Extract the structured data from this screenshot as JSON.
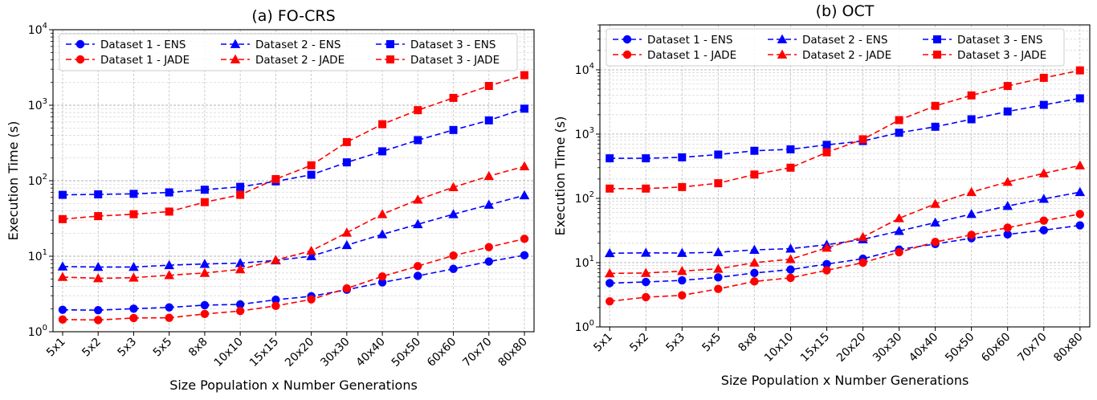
{
  "chart_data": [
    {
      "type": "line",
      "title": "(a) FO-CRS",
      "xlabel": "Size Population x Number Generations",
      "ylabel": "Execution Time (s)",
      "yscale": "log",
      "ylim": [
        1,
        10000
      ],
      "grid": true,
      "legend_position": "top",
      "categories": [
        "5x1",
        "5x2",
        "5x3",
        "5x5",
        "8x8",
        "10x10",
        "15x15",
        "20x20",
        "30x30",
        "40x40",
        "50x50",
        "60x60",
        "70x70",
        "80x80"
      ],
      "series": [
        {
          "name": "Dataset 1 - ENS",
          "color": "#0000ff",
          "marker": "circle",
          "values": [
            1.95,
            1.93,
            2.02,
            2.1,
            2.25,
            2.3,
            2.65,
            2.95,
            3.6,
            4.5,
            5.5,
            6.8,
            8.5,
            10.3
          ]
        },
        {
          "name": "Dataset 1 - JADE",
          "color": "#ff0000",
          "marker": "circle",
          "values": [
            1.45,
            1.43,
            1.52,
            1.53,
            1.72,
            1.88,
            2.2,
            2.68,
            3.75,
            5.4,
            7.4,
            10.2,
            13.2,
            17
          ]
        },
        {
          "name": "Dataset 2 - ENS",
          "color": "#0000ff",
          "marker": "triangle",
          "values": [
            7.3,
            7.2,
            7.2,
            7.6,
            7.9,
            8.1,
            8.8,
            10,
            14,
            19.5,
            26.5,
            36,
            48,
            64
          ]
        },
        {
          "name": "Dataset 2 - JADE",
          "color": "#ff0000",
          "marker": "triangle",
          "values": [
            5.3,
            5.1,
            5.2,
            5.6,
            6,
            6.7,
            8.9,
            11.8,
            20.5,
            36,
            56,
            82,
            115,
            155
          ]
        },
        {
          "name": "Dataset 3 - ENS",
          "color": "#0000ff",
          "marker": "square",
          "values": [
            65,
            66,
            67,
            70,
            76,
            83,
            98,
            120,
            175,
            245,
            345,
            470,
            630,
            900
          ]
        },
        {
          "name": "Dataset 3 - JADE",
          "color": "#ff0000",
          "marker": "square",
          "values": [
            31,
            34,
            36,
            39,
            52,
            65,
            105,
            160,
            325,
            560,
            860,
            1250,
            1800,
            2500
          ]
        }
      ]
    },
    {
      "type": "line",
      "title": "(b) OCT",
      "xlabel": "Size Population x Number Generations",
      "ylabel": "Execution Time (s)",
      "yscale": "log",
      "ylim": [
        1,
        50000
      ],
      "grid": true,
      "legend_position": "top",
      "categories": [
        "5x1",
        "5x2",
        "5x3",
        "5x5",
        "8x8",
        "10x10",
        "15x15",
        "20x20",
        "30x30",
        "40x40",
        "50x50",
        "60x60",
        "70x70",
        "80x80"
      ],
      "series": [
        {
          "name": "Dataset 1 - ENS",
          "color": "#0000ff",
          "marker": "circle",
          "values": [
            4.8,
            5,
            5.3,
            5.9,
            6.9,
            7.8,
            9.5,
            11.5,
            16,
            19.5,
            24,
            27.5,
            32,
            38
          ]
        },
        {
          "name": "Dataset 1 - JADE",
          "color": "#ff0000",
          "marker": "circle",
          "values": [
            2.5,
            2.9,
            3.1,
            3.9,
            5.1,
            5.8,
            7.6,
            10,
            14.5,
            21,
            27,
            35,
            45,
            57
          ]
        },
        {
          "name": "Dataset 2 - ENS",
          "color": "#0000ff",
          "marker": "triangle",
          "values": [
            14,
            14.2,
            14.1,
            14.5,
            15.8,
            16.5,
            19,
            23,
            31,
            42,
            57,
            76,
            98,
            125
          ]
        },
        {
          "name": "Dataset 2 - JADE",
          "color": "#ff0000",
          "marker": "triangle",
          "values": [
            6.8,
            6.9,
            7.4,
            8,
            10,
            11.3,
            17,
            25,
            49,
            82,
            125,
            180,
            245,
            325
          ]
        },
        {
          "name": "Dataset 3 - ENS",
          "color": "#0000ff",
          "marker": "square",
          "values": [
            420,
            420,
            435,
            480,
            550,
            580,
            680,
            780,
            1050,
            1300,
            1700,
            2250,
            2850,
            3600
          ]
        },
        {
          "name": "Dataset 3 - JADE",
          "color": "#ff0000",
          "marker": "square",
          "values": [
            142,
            142,
            150,
            172,
            235,
            300,
            520,
            830,
            1650,
            2750,
            4000,
            5600,
            7500,
            9800
          ]
        }
      ]
    }
  ]
}
